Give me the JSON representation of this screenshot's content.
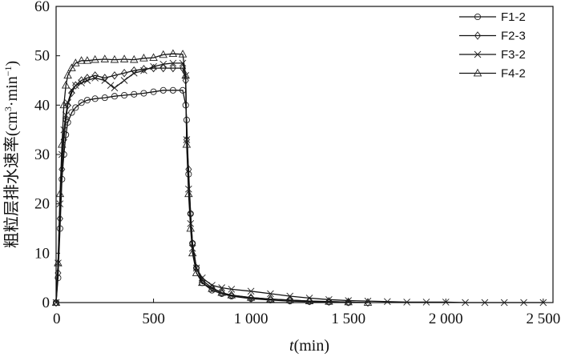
{
  "chart_data": {
    "type": "line",
    "xlabel_var": "t",
    "xlabel_unit": "(min)",
    "ylabel_main": "粗粒层排水速率(cm",
    "ylabel_sup1": "3",
    "ylabel_mid": "·min",
    "ylabel_sup2": "−1",
    "ylabel_end": ")",
    "xlim": [
      0,
      2550
    ],
    "ylim": [
      0,
      60
    ],
    "xticks": [
      0,
      500,
      1000,
      1500,
      2000,
      2500
    ],
    "xtick_labels": [
      "0",
      "500",
      "1 000",
      "1 500",
      "2 000",
      "2 500"
    ],
    "yticks": [
      0,
      10,
      20,
      30,
      40,
      50,
      60
    ],
    "ytick_labels": [
      "0",
      "10",
      "20",
      "30",
      "40",
      "50",
      "60"
    ],
    "grid": false,
    "legend_position": "top-right",
    "series": [
      {
        "name": "F1-2",
        "marker": "circle",
        "x": [
          0,
          10,
          20,
          30,
          40,
          50,
          60,
          80,
          100,
          130,
          160,
          200,
          250,
          300,
          350,
          400,
          450,
          500,
          550,
          600,
          650,
          665,
          670,
          680,
          690,
          700,
          720,
          750,
          800,
          850,
          900,
          1000,
          1100,
          1200,
          1300,
          1400,
          1500
        ],
        "y": [
          0,
          5,
          15,
          25,
          30,
          34,
          36.5,
          38.5,
          39.5,
          40.5,
          41,
          41.3,
          41.5,
          41.8,
          42,
          42.2,
          42.4,
          42.7,
          43,
          43,
          43,
          40,
          37,
          26,
          18,
          12,
          7,
          4,
          2.5,
          1.8,
          1.3,
          0.8,
          0.5,
          0.3,
          0.2,
          0.1,
          0
        ]
      },
      {
        "name": "F2-3",
        "marker": "diamond",
        "x": [
          0,
          10,
          20,
          30,
          40,
          50,
          60,
          80,
          100,
          130,
          160,
          200,
          250,
          300,
          350,
          400,
          450,
          500,
          550,
          600,
          650,
          665,
          670,
          680,
          690,
          700,
          720,
          750,
          800,
          850,
          900,
          1000,
          1100,
          1200,
          1300,
          1400,
          1500,
          1600
        ],
        "y": [
          0,
          6,
          17,
          27,
          33,
          37,
          40,
          42.5,
          44,
          45,
          45.5,
          46,
          45.5,
          46,
          46.5,
          47,
          47.3,
          47.5,
          47.5,
          47.5,
          47.5,
          45,
          33,
          27,
          18,
          12,
          7,
          4.5,
          3,
          2,
          1.5,
          1,
          0.7,
          0.5,
          0.3,
          0.2,
          0.1,
          0
        ]
      },
      {
        "name": "F3-2",
        "marker": "x",
        "x": [
          0,
          10,
          20,
          30,
          40,
          50,
          60,
          80,
          100,
          130,
          160,
          200,
          250,
          280,
          300,
          350,
          400,
          450,
          500,
          550,
          600,
          650,
          665,
          670,
          680,
          690,
          700,
          720,
          750,
          800,
          850,
          900,
          1000,
          1100,
          1200,
          1300,
          1400,
          1500,
          1600,
          1700,
          1800,
          1900,
          2000,
          2100,
          2200,
          2300,
          2400,
          2500
        ],
        "y": [
          0,
          8,
          20,
          30,
          35,
          38,
          40.5,
          43,
          44,
          44.5,
          45,
          45.5,
          45,
          44,
          43.5,
          45,
          46.5,
          47,
          47.8,
          48.3,
          48.5,
          48.5,
          46,
          33,
          23,
          16,
          11,
          7,
          5,
          3.5,
          3,
          2.7,
          2.3,
          1.8,
          1.3,
          0.9,
          0.6,
          0.4,
          0.3,
          0.2,
          0.1,
          0.1,
          0.1,
          0,
          0,
          0,
          0,
          0
        ]
      },
      {
        "name": "F4-2",
        "marker": "triangle",
        "x": [
          0,
          10,
          20,
          30,
          40,
          50,
          60,
          80,
          100,
          130,
          160,
          200,
          250,
          300,
          350,
          400,
          450,
          500,
          550,
          600,
          650,
          665,
          670,
          680,
          690,
          700,
          720,
          750,
          800,
          850,
          900,
          1000,
          1100,
          1200,
          1300,
          1400,
          1500,
          1600
        ],
        "y": [
          0,
          8,
          22,
          32,
          40,
          44,
          46,
          47.5,
          48.5,
          49,
          49,
          49.2,
          49.3,
          49.2,
          49.3,
          49.2,
          49.5,
          49.6,
          50.2,
          50.4,
          50.3,
          46,
          32,
          22,
          15,
          10,
          6,
          4,
          2.8,
          2,
          1.5,
          1,
          0.7,
          0.5,
          0.3,
          0.2,
          0.1,
          0
        ]
      }
    ]
  }
}
